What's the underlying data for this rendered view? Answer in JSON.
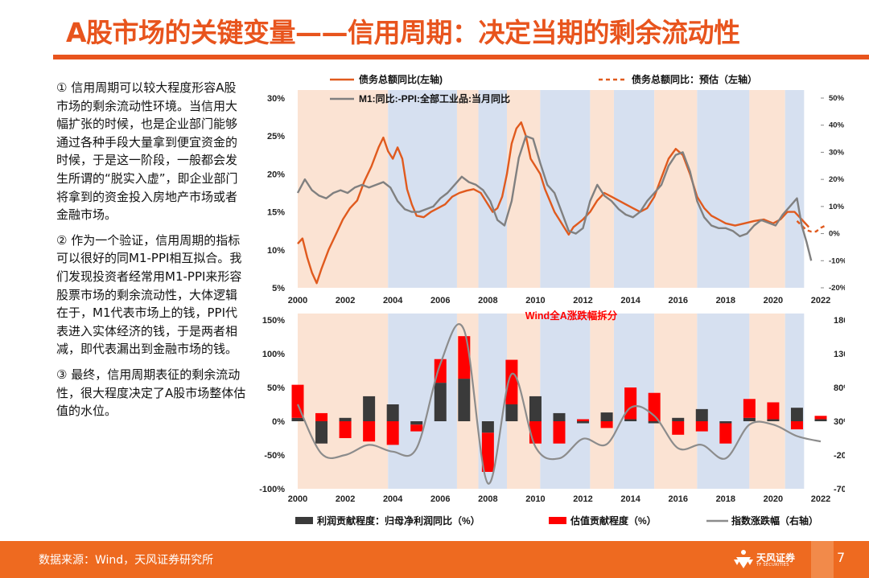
{
  "header": {
    "title": "A股市场的关键变量——信用周期：决定当期的剩余流动性"
  },
  "left_text": {
    "p1": "① 信用周期可以较大程度形容A股市场的剩余流动性环境。当信用大幅扩张的时候，也是企业部门能够通过各种手段大量拿到便宜资金的时候，于是这一阶段，一般都会发生所谓的“脱实入虚”，即企业部门将拿到的资金投入房地产市场或者金融市场。",
    "p2": "② 作为一个验证，信用周期的指标可以很好的同M1-PPI相互拟合。我们发现投资者经常用M1-PPI来形容股票市场的剩余流动性，大体逻辑在于，M1代表市场上的钱，PPI代表进入实体经济的钱，于是两者相减，即代表漏出到金融市场的钱。",
    "p3": "③ 最终，信用周期表征的剩余流动性，很大程度决定了A股市场整体估值的水位。"
  },
  "footer": {
    "source": "数据来源：Wind，天风证券研究所",
    "page": "7",
    "logo_name": "天风证券",
    "logo_sub": "TF SECURITIES"
  },
  "colors": {
    "accent": "#e8541d",
    "orange_line": "#e05a1e",
    "gray_line": "#808080",
    "shade_blue": "#d6e0f0",
    "shade_peach": "#fbe3d3",
    "bar_black": "#3a3a3a",
    "bar_red": "#ff0000"
  },
  "chart_data": [
    {
      "type": "line",
      "title": "",
      "legend": [
        {
          "label": "债务总额同比(左轴)",
          "style": "solid-orange"
        },
        {
          "label": "债务总额同比：预估（左轴）",
          "style": "dashed-orange"
        },
        {
          "label": "M1:同比:-PPI:全部工业品:当月同比",
          "style": "solid-gray"
        }
      ],
      "left_axis": {
        "range": [
          5,
          30
        ],
        "ticks": [
          "30%",
          "25%",
          "20%",
          "15%",
          "10%",
          "5%"
        ]
      },
      "right_axis": {
        "range": [
          -20,
          50
        ],
        "ticks": [
          "50%",
          "40%",
          "30%",
          "20%",
          "10%",
          "0%",
          "-10%",
          "-20%"
        ]
      },
      "x_range": [
        2000,
        2022
      ],
      "x_ticks": [
        "2000",
        "2002",
        "2004",
        "2006",
        "2008",
        "2010",
        "2012",
        "2014",
        "2016",
        "2018",
        "2020",
        "2022"
      ],
      "shaded_periods": [
        {
          "start": 2000.0,
          "end": 2003.8,
          "phase": "peach"
        },
        {
          "start": 2003.8,
          "end": 2006.7,
          "phase": "blue"
        },
        {
          "start": 2006.7,
          "end": 2007.6,
          "phase": "peach"
        },
        {
          "start": 2007.6,
          "end": 2008.8,
          "phase": "blue"
        },
        {
          "start": 2008.8,
          "end": 2010.2,
          "phase": "peach"
        },
        {
          "start": 2010.2,
          "end": 2012.3,
          "phase": "blue"
        },
        {
          "start": 2012.3,
          "end": 2013.3,
          "phase": "peach"
        },
        {
          "start": 2013.3,
          "end": 2015.0,
          "phase": "blue"
        },
        {
          "start": 2015.0,
          "end": 2016.8,
          "phase": "peach"
        },
        {
          "start": 2016.8,
          "end": 2019.0,
          "phase": "blue"
        },
        {
          "start": 2019.0,
          "end": 2020.5,
          "phase": "peach"
        },
        {
          "start": 2020.5,
          "end": 2021.3,
          "phase": "blue"
        }
      ],
      "series": [
        {
          "name": "债务总额同比(左轴)",
          "axis": "left",
          "points": [
            [
              2000.0,
              10.8
            ],
            [
              2000.2,
              11.5
            ],
            [
              2000.4,
              9
            ],
            [
              2000.6,
              7
            ],
            [
              2000.8,
              5.6
            ],
            [
              2001.0,
              7.5
            ],
            [
              2001.3,
              10
            ],
            [
              2001.6,
              12
            ],
            [
              2001.9,
              14
            ],
            [
              2002.2,
              15.5
            ],
            [
              2002.5,
              16.5
            ],
            [
              2002.8,
              19
            ],
            [
              2003.1,
              21
            ],
            [
              2003.4,
              23.5
            ],
            [
              2003.6,
              24.8
            ],
            [
              2003.8,
              23
            ],
            [
              2004.0,
              22
            ],
            [
              2004.2,
              23.5
            ],
            [
              2004.4,
              22
            ],
            [
              2004.6,
              18
            ],
            [
              2004.8,
              16
            ],
            [
              2005.0,
              14.5
            ],
            [
              2005.3,
              14.3
            ],
            [
              2005.6,
              15
            ],
            [
              2005.9,
              15.5
            ],
            [
              2006.2,
              16
            ],
            [
              2006.5,
              17
            ],
            [
              2006.8,
              17.5
            ],
            [
              2007.1,
              17.8
            ],
            [
              2007.4,
              18
            ],
            [
              2007.7,
              17.5
            ],
            [
              2008.0,
              16
            ],
            [
              2008.2,
              15
            ],
            [
              2008.4,
              15.5
            ],
            [
              2008.6,
              17
            ],
            [
              2008.8,
              20
            ],
            [
              2009.0,
              24
            ],
            [
              2009.2,
              26
            ],
            [
              2009.4,
              26.8
            ],
            [
              2009.6,
              25
            ],
            [
              2009.8,
              22
            ],
            [
              2010.0,
              21
            ],
            [
              2010.2,
              20
            ],
            [
              2010.4,
              18
            ],
            [
              2010.6,
              16.5
            ],
            [
              2010.8,
              15
            ],
            [
              2011.0,
              14
            ],
            [
              2011.2,
              13
            ],
            [
              2011.4,
              12
            ],
            [
              2011.6,
              13
            ],
            [
              2011.8,
              13.5
            ],
            [
              2012.0,
              14
            ],
            [
              2012.3,
              15
            ],
            [
              2012.6,
              16.5
            ],
            [
              2012.9,
              17.5
            ],
            [
              2013.2,
              17
            ],
            [
              2013.5,
              16.5
            ],
            [
              2013.8,
              16
            ],
            [
              2014.1,
              15.5
            ],
            [
              2014.4,
              15
            ],
            [
              2014.7,
              15.5
            ],
            [
              2015.0,
              17
            ],
            [
              2015.3,
              19.5
            ],
            [
              2015.6,
              22
            ],
            [
              2015.9,
              23.3
            ],
            [
              2016.2,
              22.5
            ],
            [
              2016.5,
              20
            ],
            [
              2016.8,
              17
            ],
            [
              2017.1,
              15.5
            ],
            [
              2017.4,
              14.5
            ],
            [
              2017.7,
              14
            ],
            [
              2018.0,
              13.5
            ],
            [
              2018.4,
              13.2
            ],
            [
              2018.8,
              13.5
            ],
            [
              2019.2,
              13.8
            ],
            [
              2019.6,
              14
            ],
            [
              2020.0,
              13.5
            ],
            [
              2020.3,
              14
            ],
            [
              2020.6,
              15
            ],
            [
              2020.9,
              15
            ],
            [
              2021.2,
              14
            ],
            [
              2021.5,
              13
            ]
          ]
        },
        {
          "name": "债务总额同比：预估（左轴）",
          "axis": "left",
          "dashed": true,
          "points": [
            [
              2021.0,
              13.8
            ],
            [
              2021.2,
              13.2
            ],
            [
              2021.4,
              12.6
            ],
            [
              2021.6,
              12.4
            ],
            [
              2021.8,
              12.4
            ],
            [
              2022.0,
              12.9
            ],
            [
              2022.2,
              13.2
            ]
          ]
        },
        {
          "name": "M1:同比:-PPI:全部工业品:当月同比",
          "axis": "right",
          "points": [
            [
              2000.0,
              15
            ],
            [
              2000.3,
              20
            ],
            [
              2000.6,
              16
            ],
            [
              2000.9,
              14
            ],
            [
              2001.2,
              13
            ],
            [
              2001.5,
              15
            ],
            [
              2001.8,
              16
            ],
            [
              2002.1,
              15
            ],
            [
              2002.4,
              17
            ],
            [
              2002.7,
              18
            ],
            [
              2003.0,
              17
            ],
            [
              2003.3,
              18
            ],
            [
              2003.6,
              19
            ],
            [
              2003.9,
              17
            ],
            [
              2004.2,
              12
            ],
            [
              2004.5,
              9
            ],
            [
              2004.8,
              8
            ],
            [
              2005.1,
              8
            ],
            [
              2005.4,
              9
            ],
            [
              2005.7,
              10
            ],
            [
              2006.0,
              13
            ],
            [
              2006.3,
              15
            ],
            [
              2006.6,
              18
            ],
            [
              2006.9,
              21
            ],
            [
              2007.2,
              19
            ],
            [
              2007.5,
              18
            ],
            [
              2007.8,
              16
            ],
            [
              2008.1,
              12
            ],
            [
              2008.4,
              5
            ],
            [
              2008.7,
              3
            ],
            [
              2009.0,
              12
            ],
            [
              2009.3,
              28
            ],
            [
              2009.6,
              36
            ],
            [
              2009.9,
              35
            ],
            [
              2010.2,
              26
            ],
            [
              2010.5,
              18
            ],
            [
              2010.8,
              15
            ],
            [
              2011.1,
              8
            ],
            [
              2011.4,
              1
            ],
            [
              2011.7,
              0
            ],
            [
              2012.0,
              2
            ],
            [
              2012.3,
              12
            ],
            [
              2012.6,
              18
            ],
            [
              2012.9,
              14
            ],
            [
              2013.2,
              12
            ],
            [
              2013.5,
              9
            ],
            [
              2013.8,
              7
            ],
            [
              2014.1,
              6
            ],
            [
              2014.4,
              8
            ],
            [
              2014.7,
              12
            ],
            [
              2015.0,
              15
            ],
            [
              2015.3,
              18
            ],
            [
              2015.6,
              25
            ],
            [
              2015.9,
              29
            ],
            [
              2016.2,
              30
            ],
            [
              2016.5,
              23
            ],
            [
              2016.8,
              12
            ],
            [
              2017.1,
              6
            ],
            [
              2017.4,
              3
            ],
            [
              2017.7,
              2
            ],
            [
              2018.0,
              2
            ],
            [
              2018.3,
              1
            ],
            [
              2018.6,
              -1
            ],
            [
              2018.9,
              0
            ],
            [
              2019.2,
              3
            ],
            [
              2019.5,
              5
            ],
            [
              2019.8,
              4
            ],
            [
              2020.1,
              3
            ],
            [
              2020.4,
              7
            ],
            [
              2020.7,
              10
            ],
            [
              2021.0,
              13
            ],
            [
              2021.2,
              3
            ],
            [
              2021.4,
              -3
            ],
            [
              2021.6,
              -10
            ]
          ]
        }
      ]
    },
    {
      "type": "bar",
      "title": "Wind全A涨跌幅拆分",
      "categories": [
        "2000",
        "2001",
        "2002",
        "2003",
        "2004",
        "2005",
        "2006",
        "2007",
        "2008",
        "2009",
        "2010",
        "2011",
        "2012",
        "2013",
        "2014",
        "2015",
        "2016",
        "2017",
        "2018",
        "2019",
        "2020",
        "2021",
        "2022"
      ],
      "x_ticks": [
        "2000",
        "2002",
        "2004",
        "2006",
        "2008",
        "2010",
        "2012",
        "2014",
        "2016",
        "2018",
        "2020",
        "2022"
      ],
      "left_axis": {
        "range": [
          -100,
          150
        ],
        "ticks": [
          "150%",
          "100%",
          "50%",
          "0%",
          "-50%",
          "-100%"
        ]
      },
      "right_axis": {
        "range": [
          -70,
          180
        ],
        "ticks": [
          "180%",
          "130%",
          "80%",
          "30%",
          "-20%",
          "-70%"
        ]
      },
      "legend": [
        {
          "label": "利润贡献程度：归母净利润同比（%）",
          "style": "bar-black"
        },
        {
          "label": "估值贡献程度（%）",
          "style": "bar-red"
        },
        {
          "label": "指数涨跌幅（右轴）",
          "style": "line-gray"
        }
      ],
      "series": [
        {
          "name": "利润贡献程度：归母净利润同比（%）",
          "axis": "left",
          "values": [
            5,
            -33,
            5,
            37,
            25,
            -5,
            57,
            63,
            -17,
            25,
            37,
            12,
            -3,
            13,
            3,
            -3,
            5,
            18,
            -3,
            5,
            3,
            20,
            3
          ]
        },
        {
          "name": "估值贡献程度（%）",
          "axis": "left",
          "values": [
            49,
            12,
            -25,
            -30,
            -35,
            -10,
            35,
            63,
            -58,
            66,
            -33,
            -33,
            3,
            -10,
            47,
            42,
            -20,
            -15,
            -30,
            28,
            25,
            -12,
            5
          ]
        },
        {
          "name": "指数涨跌幅（右轴）",
          "axis": "right",
          "values": [
            55,
            -18,
            -20,
            -5,
            -15,
            -10,
            115,
            165,
            -62,
            100,
            -8,
            -25,
            4,
            -4,
            50,
            38,
            -10,
            -5,
            -25,
            25,
            25,
            8,
            0
          ]
        }
      ]
    }
  ]
}
